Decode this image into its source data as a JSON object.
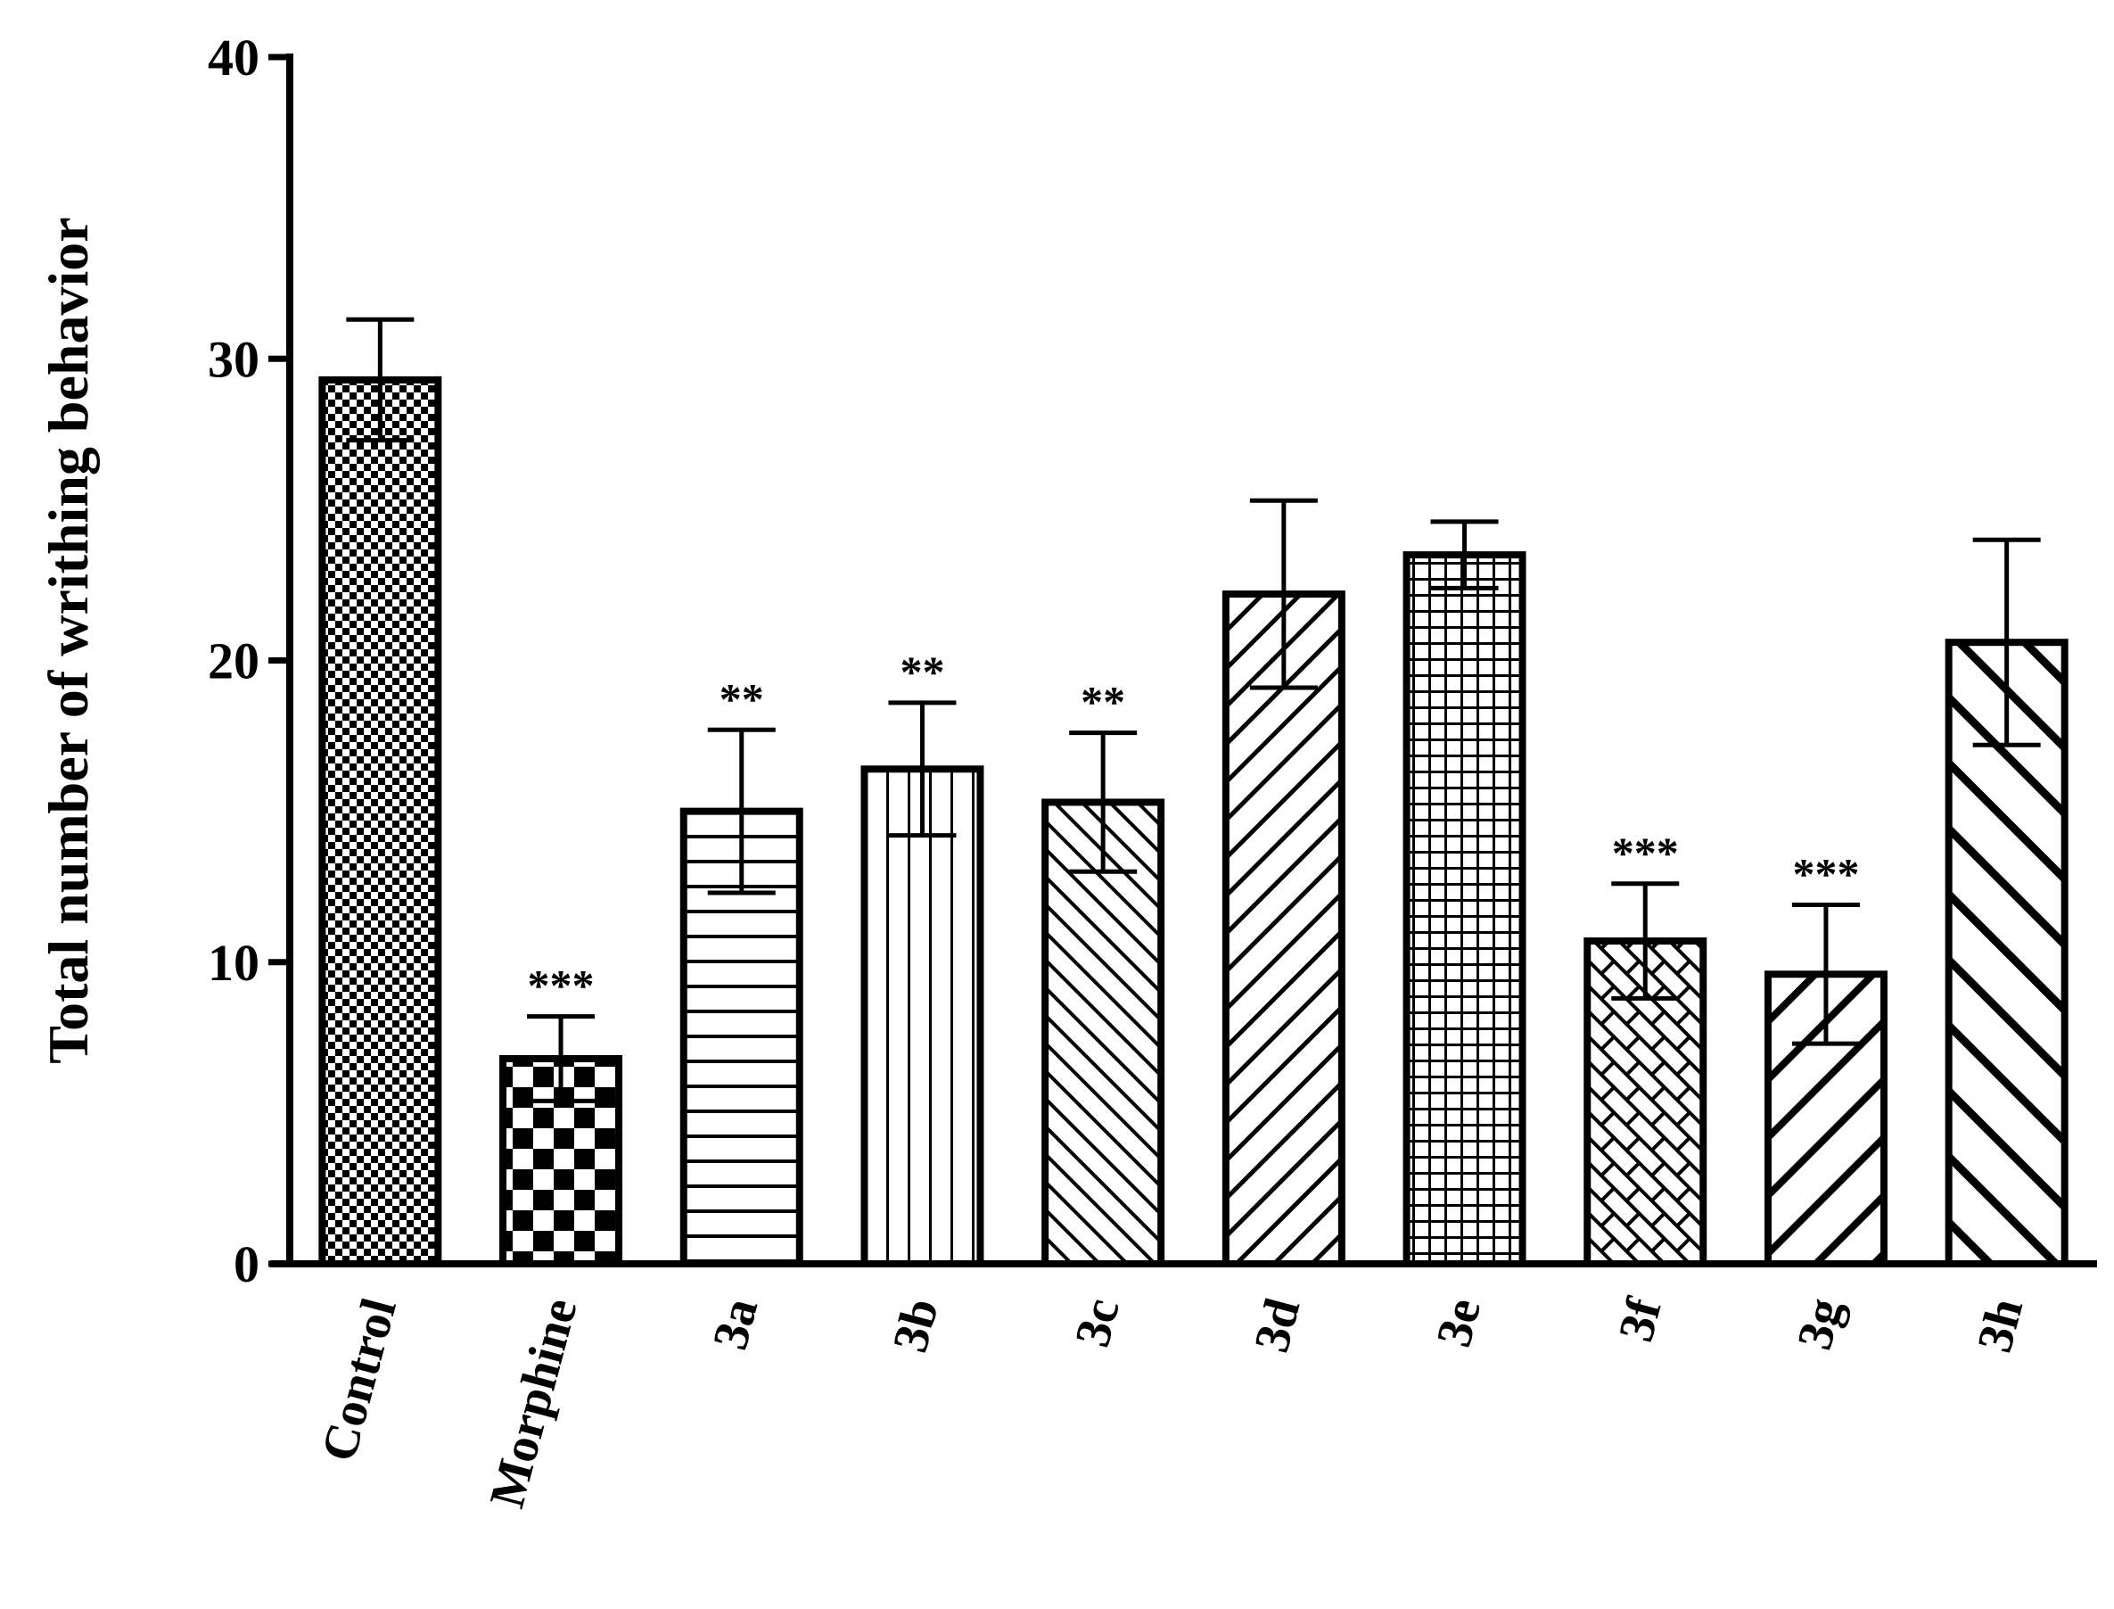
{
  "chart_data": {
    "type": "bar",
    "title": "",
    "xlabel": "",
    "ylabel": "Total number of writhing behavior",
    "ylim": [
      0,
      40
    ],
    "yticks": [
      0,
      10,
      20,
      30,
      40
    ],
    "grid": false,
    "categories": [
      "Control",
      "Morphine",
      "3a",
      "3b",
      "3c",
      "3d",
      "3e",
      "3f",
      "3g",
      "3h"
    ],
    "values": [
      29.3,
      6.8,
      15.0,
      16.4,
      15.3,
      22.2,
      23.5,
      10.7,
      9.6,
      20.6
    ],
    "errors": [
      2.0,
      1.4,
      2.7,
      2.2,
      2.3,
      3.1,
      1.1,
      1.9,
      2.3,
      3.4
    ],
    "significance": [
      "",
      "***",
      "**",
      "**",
      "**",
      "",
      "",
      "***",
      "***",
      ""
    ],
    "patterns": [
      "fine-checker",
      "large-checker",
      "horizontal-lines",
      "vertical-lines",
      "fine-diagonal",
      "back-diagonal",
      "grid",
      "diagonal-brick",
      "thick-back-diagonal",
      "thick-diagonal"
    ]
  }
}
